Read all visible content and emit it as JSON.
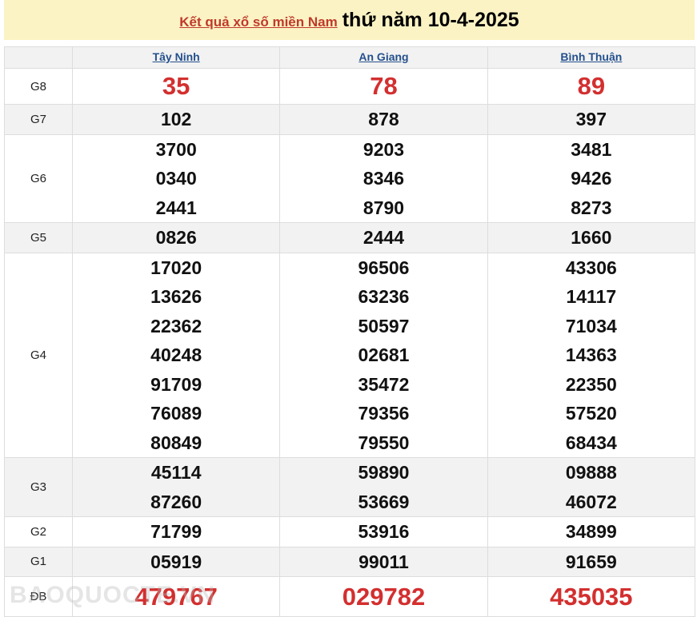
{
  "title": {
    "link": "Kết quả xổ số miền Nam",
    "date": "thứ năm 10-4-2025"
  },
  "provinces": [
    "Tây Ninh",
    "An Giang",
    "Bình Thuận"
  ],
  "rows": [
    {
      "label": "G8",
      "values": [
        [
          "35"
        ],
        [
          "78"
        ],
        [
          "89"
        ]
      ]
    },
    {
      "label": "G7",
      "values": [
        [
          "102"
        ],
        [
          "878"
        ],
        [
          "397"
        ]
      ]
    },
    {
      "label": "G6",
      "values": [
        [
          "3700",
          "0340",
          "2441"
        ],
        [
          "9203",
          "8346",
          "8790"
        ],
        [
          "3481",
          "9426",
          "8273"
        ]
      ]
    },
    {
      "label": "G5",
      "values": [
        [
          "0826"
        ],
        [
          "2444"
        ],
        [
          "1660"
        ]
      ]
    },
    {
      "label": "G4",
      "values": [
        [
          "17020",
          "13626",
          "22362",
          "40248",
          "91709",
          "76089",
          "80849"
        ],
        [
          "96506",
          "63236",
          "50597",
          "02681",
          "35472",
          "79356",
          "79550"
        ],
        [
          "43306",
          "14117",
          "71034",
          "14363",
          "22350",
          "57520",
          "68434"
        ]
      ]
    },
    {
      "label": "G3",
      "values": [
        [
          "45114",
          "87260"
        ],
        [
          "59890",
          "53669"
        ],
        [
          "09888",
          "46072"
        ]
      ]
    },
    {
      "label": "G2",
      "values": [
        [
          "71799"
        ],
        [
          "53916"
        ],
        [
          "34899"
        ]
      ]
    },
    {
      "label": "G1",
      "values": [
        [
          "05919"
        ],
        [
          "99011"
        ],
        [
          "91659"
        ]
      ]
    },
    {
      "label": "ĐB",
      "values": [
        [
          "479767"
        ],
        [
          "029782"
        ],
        [
          "435035"
        ]
      ]
    }
  ],
  "watermark": "BAOQUOCTE.VN",
  "colors": {
    "prize_red": "#d32f2f",
    "title_bg": "#fbf3c4",
    "link": "#24508c"
  }
}
